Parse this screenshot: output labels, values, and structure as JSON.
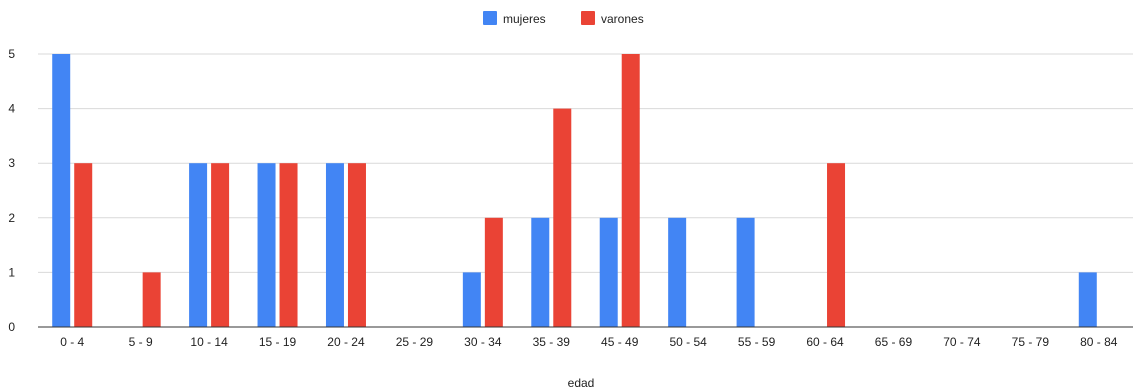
{
  "chart_data": {
    "type": "bar",
    "title": "",
    "xlabel": "edad",
    "ylabel": "",
    "ylim": [
      0,
      5
    ],
    "yticks": [
      "0",
      "1",
      "2",
      "3",
      "4",
      "5"
    ],
    "grid": true,
    "legend_position": "top-center",
    "categories": [
      "0 - 4",
      "5 - 9",
      "10 - 14",
      "15 - 19",
      "20 - 24",
      "25 - 29",
      "30 - 34",
      "35 - 39",
      "45 - 49",
      "50 - 54",
      "55 - 59",
      "60 - 64",
      "65 - 69",
      "70 - 74",
      "75 - 79",
      "80 - 84"
    ],
    "series": [
      {
        "name": "mujeres",
        "color": "#4285f4",
        "values": [
          5,
          0,
          3,
          3,
          3,
          0,
          1,
          2,
          2,
          2,
          2,
          0,
          0,
          0,
          0,
          1
        ]
      },
      {
        "name": "varones",
        "color": "#ea4335",
        "values": [
          3,
          1,
          3,
          3,
          3,
          0,
          2,
          4,
          5,
          0,
          0,
          3,
          0,
          0,
          0,
          0
        ]
      }
    ]
  }
}
